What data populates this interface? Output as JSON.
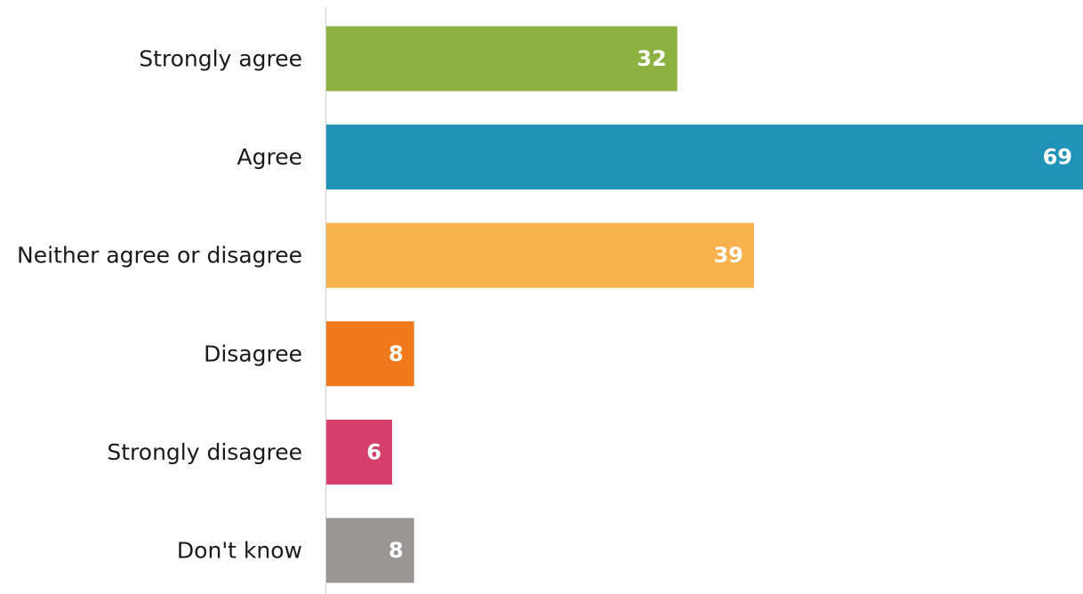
{
  "chart_data": {
    "type": "bar",
    "orientation": "horizontal",
    "categories": [
      "Strongly agree",
      "Agree",
      "Neither agree or disagree",
      "Disagree",
      "Strongly disagree",
      "Don't know"
    ],
    "values": [
      32,
      69,
      39,
      8,
      6,
      8
    ],
    "colors": [
      "#8db141",
      "#2293b8",
      "#f7b24d",
      "#ee7a1d",
      "#d4406b",
      "#9a9696"
    ],
    "data_labels": [
      "32",
      "69",
      "39",
      "8",
      "6",
      "8"
    ],
    "xlim": [
      0,
      69
    ],
    "grid": false,
    "legend": "none",
    "title": "",
    "xlabel": "",
    "ylabel": ""
  }
}
